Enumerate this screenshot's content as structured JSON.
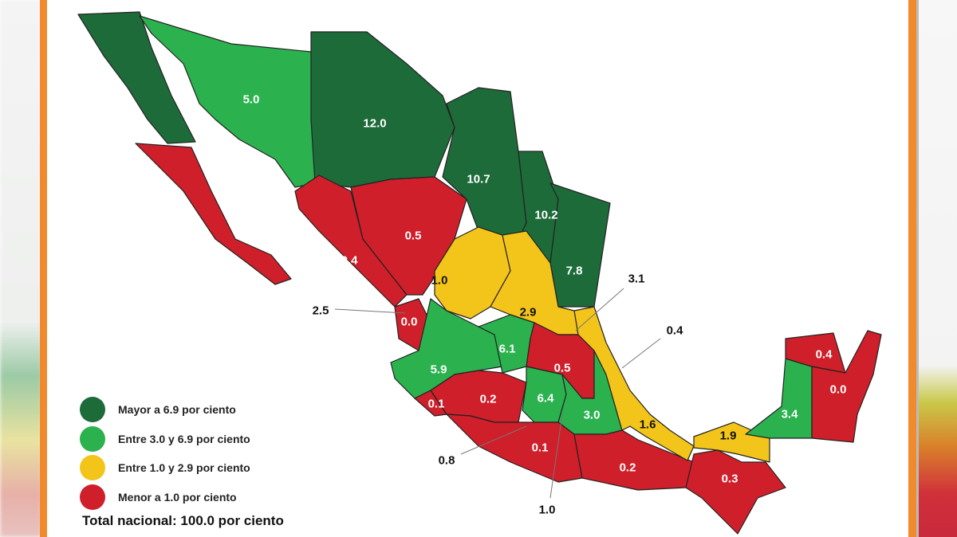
{
  "colors": {
    "mayor": "#1e6b3a",
    "entre_3_69": "#2bb24f",
    "entre_1_29": "#f3c51b",
    "menor": "#cf1f2a",
    "frame": "#f08a2c",
    "outline": "#222222"
  },
  "legend": {
    "items": [
      {
        "label": "Mayor a 6.9 por ciento",
        "category": "mayor"
      },
      {
        "label": "Entre 3.0 y 6.9 por ciento",
        "category": "entre_3_69"
      },
      {
        "label": "Entre 1.0 y 2.9 por ciento",
        "category": "entre_1_29"
      },
      {
        "label": "Menor a 1.0 por ciento",
        "category": "menor"
      }
    ],
    "total": "Total nacional: 100.0 por ciento"
  },
  "regions": [
    {
      "value": "11.4",
      "category": "mayor"
    },
    {
      "value": "5.0",
      "category": "entre_3_69"
    },
    {
      "value": "12.0",
      "category": "mayor"
    },
    {
      "value": "10.7",
      "category": "mayor"
    },
    {
      "value": "10.2",
      "category": "mayor"
    },
    {
      "value": "7.8",
      "category": "mayor"
    },
    {
      "value": "0.1",
      "category": "menor"
    },
    {
      "value": "0.4",
      "category": "menor"
    },
    {
      "value": "0.5",
      "category": "menor"
    },
    {
      "value": "0.0",
      "category": "menor"
    },
    {
      "value": "1.0",
      "category": "entre_1_29"
    },
    {
      "value": "2.9",
      "category": "entre_1_29"
    },
    {
      "value": "5.9",
      "category": "entre_3_69"
    },
    {
      "value": "6.1",
      "category": "entre_3_69"
    },
    {
      "value": "0.5",
      "category": "menor"
    },
    {
      "value": "0.2",
      "category": "menor"
    },
    {
      "value": "0.1",
      "category": "menor"
    },
    {
      "value": "6.4",
      "category": "entre_3_69"
    },
    {
      "value": "3.0",
      "category": "entre_3_69"
    },
    {
      "value": "0.1",
      "category": "menor"
    },
    {
      "value": "0.2",
      "category": "menor"
    },
    {
      "value": "1.6",
      "category": "entre_1_29"
    },
    {
      "value": "1.9",
      "category": "entre_1_29"
    },
    {
      "value": "0.3",
      "category": "menor"
    },
    {
      "value": "3.4",
      "category": "entre_3_69"
    },
    {
      "value": "0.4",
      "category": "menor"
    },
    {
      "value": "0.0",
      "category": "menor"
    }
  ],
  "callouts": [
    {
      "value": "2.5"
    },
    {
      "value": "3.1"
    },
    {
      "value": "0.4"
    },
    {
      "value": "0.8"
    },
    {
      "value": "1.0"
    }
  ]
}
